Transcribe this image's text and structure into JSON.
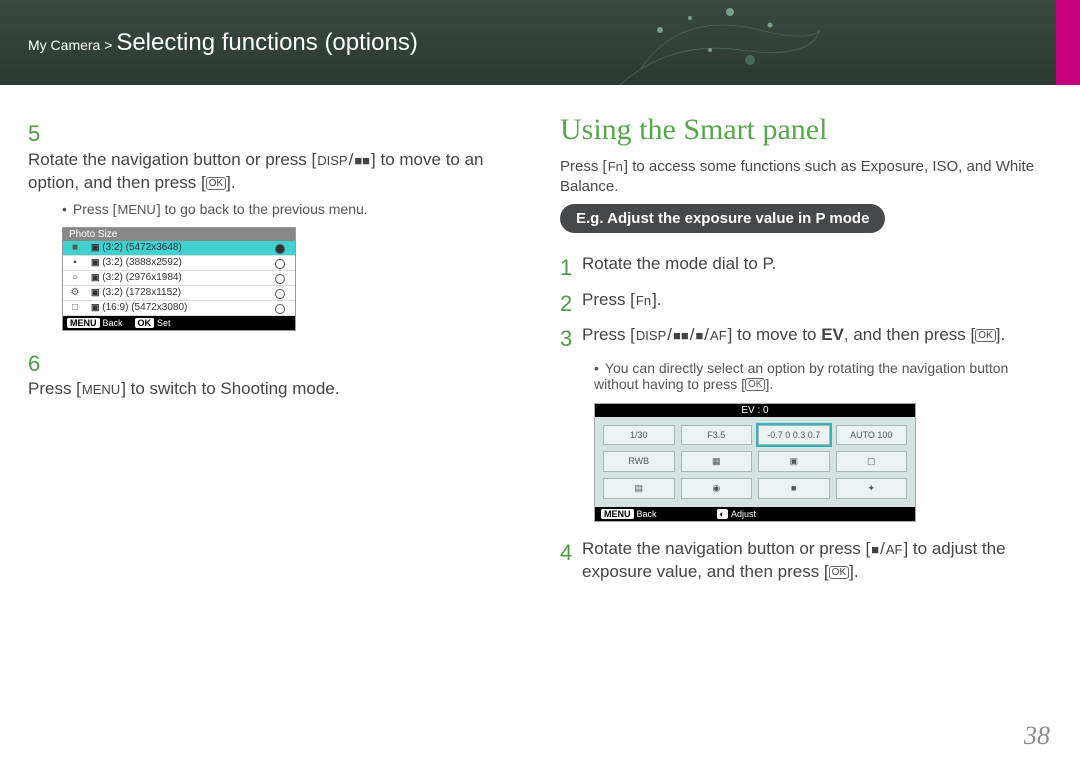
{
  "header": {
    "breadcrumb_parent": "My Camera >",
    "title": "Selecting functions (options)"
  },
  "left": {
    "step5_num": "5",
    "step5_text_a": "Rotate the navigation button or press [",
    "step5_key1": "DISP",
    "step5_slash": "/",
    "step5_key2": "■■",
    "step5_text_b": "] to move to an option, and then press [",
    "step5_ok": "OK",
    "step5_text_c": "].",
    "step5_sub_a": "Press [",
    "step5_sub_key": "MENU",
    "step5_sub_b": "] to go back to the previous menu.",
    "lcd_title": "Photo Size",
    "lcd_rows": [
      {
        "label": "(3:2) (5472x3648)",
        "sel": true
      },
      {
        "label": "(3:2) (3888x2592)",
        "sel": false
      },
      {
        "label": "(3:2) (2976x1984)",
        "sel": false
      },
      {
        "label": "(3:2) (1728x1152)",
        "sel": false
      },
      {
        "label": "(16:9) (5472x3080)",
        "sel": false
      }
    ],
    "lcd_back": "Back",
    "lcd_set": "Set",
    "step6_num": "6",
    "step6_a": "Press [",
    "step6_key": "MENU",
    "step6_b": "] to switch to Shooting mode."
  },
  "right": {
    "heading": "Using the Smart panel",
    "intro_a": "Press [",
    "intro_key": "Fn",
    "intro_b": "] to access some functions such as Exposure, ISO, and White Balance.",
    "pill_a": "E.g. Adjust the exposure value in ",
    "pill_mode": "P",
    "pill_b": " mode",
    "s1_num": "1",
    "s1_a": "Rotate the mode dial to ",
    "s1_mode": "P",
    "s1_b": ".",
    "s2_num": "2",
    "s2_a": "Press [",
    "s2_key": "Fn",
    "s2_b": "].",
    "s3_num": "3",
    "s3_a": "Press [",
    "s3_k1": "DISP",
    "s3_s": "/",
    "s3_k2": "■■",
    "s3_k3": "■",
    "s3_k4": "AF",
    "s3_b": "] to move to ",
    "s3_ev": "EV",
    "s3_c": ", and then press [",
    "s3_ok": "OK",
    "s3_d": "].",
    "s3_sub": "You can directly select an option by rotating the navigation button without having to press [",
    "s3_sub_ok": "OK",
    "s3_sub_end": "].",
    "panel_top": "EV : 0",
    "panel_cells": [
      "1/30",
      "F3.5",
      "-0.7  0  0.3  0.7",
      "AUTO    100",
      "RWB",
      "▦",
      "▣",
      "▢",
      "▤",
      "◉",
      "■",
      "✦"
    ],
    "panel_back": "Back",
    "panel_adjust": "Adjust",
    "s4_num": "4",
    "s4_a": "Rotate the navigation button or press [",
    "s4_k1": "■",
    "s4_k2": "AF",
    "s4_b": "] to adjust the exposure value, and then press [",
    "s4_ok": "OK",
    "s4_c": "]."
  },
  "pagenum": "38",
  "colors": {
    "bg": "#ffffff",
    "header": "#2a3a32",
    "accent": "#54a84a",
    "magenta": "#c6007e"
  }
}
